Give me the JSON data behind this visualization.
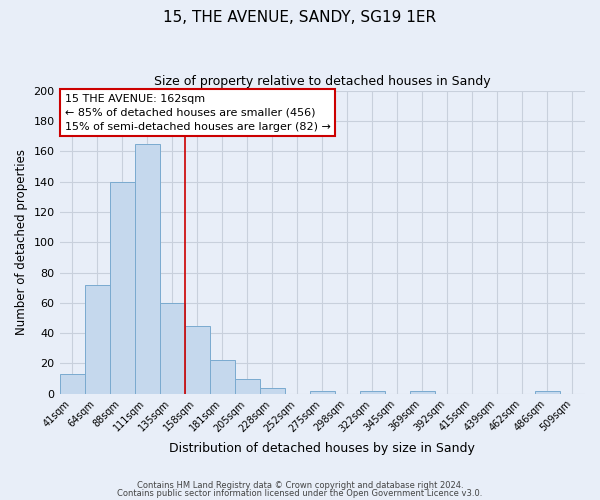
{
  "title": "15, THE AVENUE, SANDY, SG19 1ER",
  "subtitle": "Size of property relative to detached houses in Sandy",
  "xlabel": "Distribution of detached houses by size in Sandy",
  "ylabel": "Number of detached properties",
  "bar_color": "#c5d8ed",
  "bar_edge_color": "#7aaacf",
  "bin_labels": [
    "41sqm",
    "64sqm",
    "88sqm",
    "111sqm",
    "135sqm",
    "158sqm",
    "181sqm",
    "205sqm",
    "228sqm",
    "252sqm",
    "275sqm",
    "298sqm",
    "322sqm",
    "345sqm",
    "369sqm",
    "392sqm",
    "415sqm",
    "439sqm",
    "462sqm",
    "486sqm",
    "509sqm"
  ],
  "bar_heights": [
    13,
    72,
    140,
    165,
    60,
    45,
    22,
    10,
    4,
    0,
    2,
    0,
    2,
    0,
    2,
    0,
    0,
    0,
    0,
    2,
    0
  ],
  "vline_x": 4.5,
  "vline_color": "#cc0000",
  "ylim": [
    0,
    200
  ],
  "yticks": [
    0,
    20,
    40,
    60,
    80,
    100,
    120,
    140,
    160,
    180,
    200
  ],
  "annotation_line1": "15 THE AVENUE: 162sqm",
  "annotation_line2": "← 85% of detached houses are smaller (456)",
  "annotation_line3": "15% of semi-detached houses are larger (82) →",
  "footnote1": "Contains HM Land Registry data © Crown copyright and database right 2024.",
  "footnote2": "Contains public sector information licensed under the Open Government Licence v3.0.",
  "background_color": "#e8eef8",
  "plot_bg_color": "#e8eef8",
  "grid_color": "#c8d0dc"
}
